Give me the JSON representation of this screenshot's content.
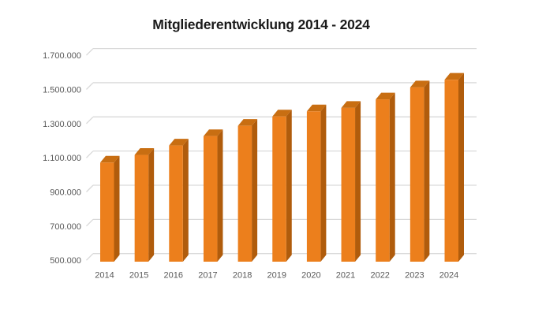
{
  "chart_data": {
    "type": "bar",
    "style": "3d-column",
    "title": "Mitgliederentwicklung 2014 - 2024",
    "categories": [
      "2014",
      "2015",
      "2016",
      "2017",
      "2018",
      "2019",
      "2020",
      "2021",
      "2022",
      "2023",
      "2024"
    ],
    "values": [
      1080000,
      1125000,
      1180000,
      1235000,
      1295000,
      1350000,
      1380000,
      1400000,
      1450000,
      1520000,
      1565000
    ],
    "xlabel": "",
    "ylabel": "",
    "ylim": [
      500000,
      1700000
    ],
    "ytick_interval": 200000,
    "ytick_labels": [
      "500.000",
      "700.000",
      "900.000",
      "1.100.000",
      "1.300.000",
      "1.500.000",
      "1.700.000"
    ],
    "grid": true,
    "legend": "none",
    "data_labels": "none",
    "colors": {
      "bar_front": "#EC7F1C",
      "bar_top": "#C86E12",
      "bar_side": "#B05C0C",
      "gridline": "#D9D9D9",
      "axis_text": "#595959",
      "title_text": "#1A1A1A",
      "background": "#FFFFFF"
    }
  }
}
